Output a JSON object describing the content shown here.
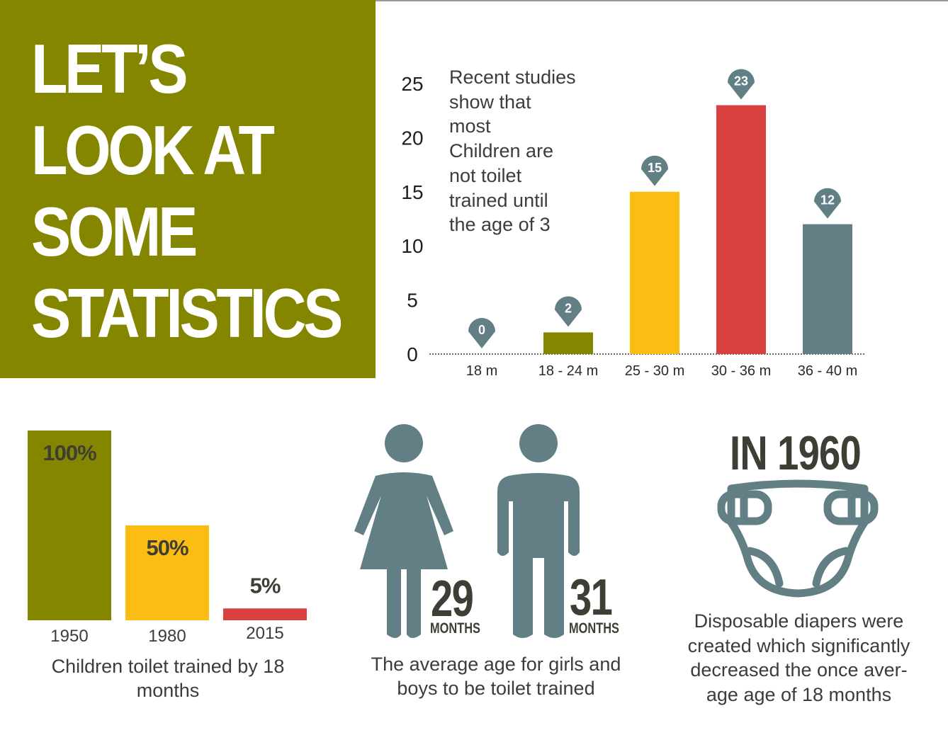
{
  "title_lines": [
    "LET’S",
    "LOOK AT",
    "SOME",
    "STATISTICS"
  ],
  "colors": {
    "olive": "#848600",
    "yellow": "#fbbc13",
    "red": "#d94141",
    "slate": "#617f84",
    "dark_text": "#3e3e34",
    "text": "#3c3c3c"
  },
  "main_note_lines": [
    "Recent studies",
    "show that",
    "most",
    "Children are",
    "not toilet",
    "trained until",
    "the age of 3"
  ],
  "small_caption": "Children toilet trained by 18 months",
  "people": {
    "girls_value": "29",
    "girls_unit": "MONTHS",
    "boys_value": "31",
    "boys_unit": "MONTHS",
    "caption": "The average age for girls and boys to be toilet trained"
  },
  "diaper": {
    "heading": "IN 1960",
    "caption_lines": [
      "Disposable diapers were",
      "created which significantly",
      "decreased the once aver-",
      "age age of 18 months"
    ]
  },
  "chart_data": [
    {
      "type": "bar",
      "categories": [
        "18 m",
        "18 - 24 m",
        "25 - 30 m",
        "30 - 36 m",
        "36 - 40 m"
      ],
      "values": [
        0,
        2,
        15,
        23,
        12
      ],
      "data_labels": [
        "0",
        "2",
        "15",
        "23",
        "12"
      ],
      "colors": [
        "#848600",
        "#848600",
        "#fbbc13",
        "#d94141",
        "#617f84"
      ],
      "ylim": [
        0,
        25
      ],
      "yticks": [
        "0",
        "5",
        "10",
        "15",
        "20",
        "25"
      ],
      "grid": false
    },
    {
      "type": "bar",
      "categories": [
        "1950",
        "1980",
        "2015"
      ],
      "values": [
        100,
        50,
        5
      ],
      "data_labels": [
        "100%",
        "50%",
        "5%"
      ],
      "colors": [
        "#848600",
        "#fbbc13",
        "#d94141"
      ],
      "ylim": [
        0,
        100
      ],
      "axis": false
    }
  ]
}
